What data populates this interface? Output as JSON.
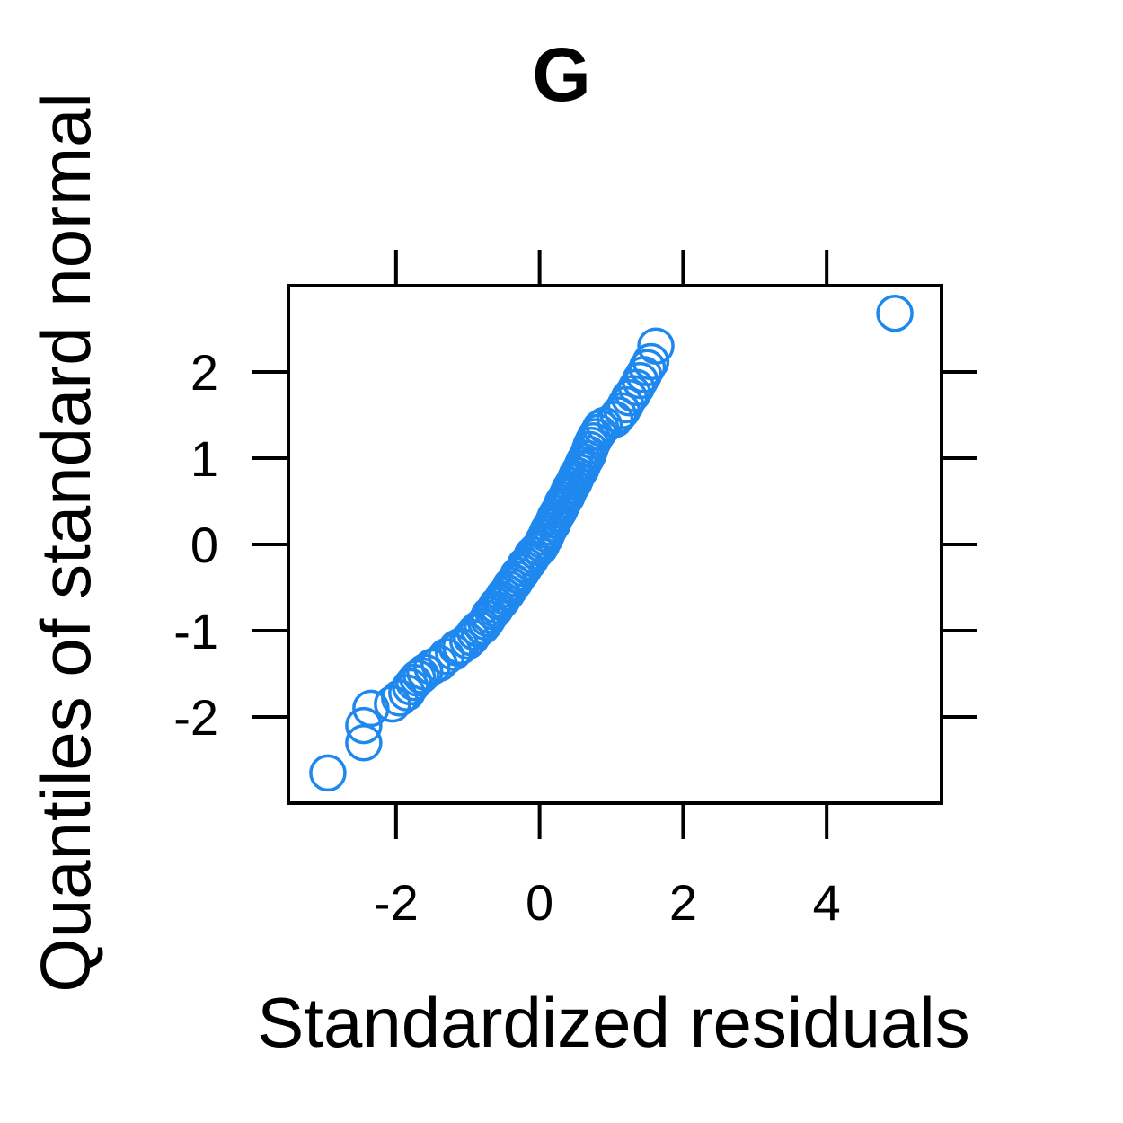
{
  "chart_data": {
    "type": "scatter",
    "title": "G",
    "xlabel": "Standardized residuals",
    "ylabel": "Quantiles of standard normal",
    "xlim": [
      -3.5,
      5.6
    ],
    "ylim": [
      -3.0,
      3.0
    ],
    "x_ticks": [
      -2,
      0,
      2,
      4
    ],
    "y_ticks": [
      -2,
      -1,
      0,
      1,
      2
    ],
    "x_tick_labels": [
      "-2",
      "0",
      "2",
      "4"
    ],
    "y_tick_labels": [
      "-2",
      "-1",
      "0",
      "1",
      "2"
    ],
    "grid": false,
    "legend": "none",
    "marker": "open-circle",
    "point_color": "#1e88ee",
    "x": [
      -2.95,
      -2.45,
      -2.45,
      -2.35,
      -2.05,
      -1.95,
      -1.85,
      -1.8,
      -1.75,
      -1.7,
      -1.65,
      -1.6,
      -1.5,
      -1.4,
      -1.3,
      -1.2,
      -1.15,
      -1.1,
      -1.0,
      -0.95,
      -0.9,
      -0.85,
      -0.8,
      -0.75,
      -0.72,
      -0.7,
      -0.65,
      -0.62,
      -0.6,
      -0.55,
      -0.52,
      -0.5,
      -0.45,
      -0.42,
      -0.4,
      -0.35,
      -0.32,
      -0.3,
      -0.25,
      -0.22,
      -0.2,
      -0.15,
      -0.12,
      -0.1,
      -0.05,
      0.0,
      0.03,
      0.05,
      0.08,
      0.1,
      0.12,
      0.15,
      0.18,
      0.2,
      0.22,
      0.25,
      0.28,
      0.3,
      0.32,
      0.35,
      0.38,
      0.4,
      0.42,
      0.45,
      0.48,
      0.5,
      0.52,
      0.55,
      0.58,
      0.6,
      0.62,
      0.65,
      0.68,
      0.7,
      0.72,
      0.75,
      0.78,
      0.82,
      0.85,
      0.9,
      1.05,
      1.1,
      1.15,
      1.2,
      1.25,
      1.3,
      1.35,
      1.4,
      1.45,
      1.5,
      1.55,
      1.62,
      4.95
    ],
    "y": [
      -2.65,
      -2.3,
      -2.1,
      -1.9,
      -1.85,
      -1.78,
      -1.72,
      -1.65,
      -1.6,
      -1.55,
      -1.52,
      -1.48,
      -1.42,
      -1.38,
      -1.3,
      -1.25,
      -1.2,
      -1.18,
      -1.12,
      -1.08,
      -1.02,
      -0.98,
      -0.95,
      -0.9,
      -0.86,
      -0.82,
      -0.78,
      -0.75,
      -0.71,
      -0.67,
      -0.64,
      -0.6,
      -0.56,
      -0.52,
      -0.48,
      -0.44,
      -0.4,
      -0.36,
      -0.32,
      -0.28,
      -0.24,
      -0.2,
      -0.16,
      -0.12,
      -0.08,
      -0.04,
      0.0,
      0.04,
      0.08,
      0.12,
      0.16,
      0.2,
      0.24,
      0.28,
      0.32,
      0.36,
      0.4,
      0.44,
      0.48,
      0.52,
      0.56,
      0.6,
      0.64,
      0.68,
      0.72,
      0.76,
      0.8,
      0.84,
      0.88,
      0.92,
      0.96,
      1.0,
      1.05,
      1.1,
      1.15,
      1.2,
      1.25,
      1.3,
      1.35,
      1.38,
      1.45,
      1.5,
      1.55,
      1.62,
      1.7,
      1.75,
      1.82,
      1.9,
      1.97,
      2.05,
      2.12,
      2.3,
      2.68
    ]
  }
}
